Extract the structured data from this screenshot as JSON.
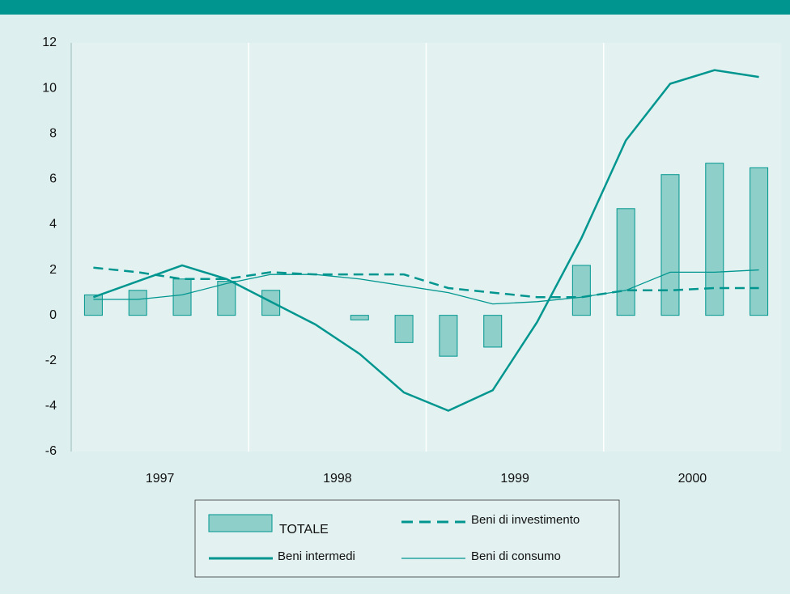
{
  "chart_data": {
    "type": "bar_line",
    "categories": [
      null,
      null,
      null,
      null,
      null,
      null,
      null,
      null,
      null,
      null,
      null,
      null,
      null,
      null,
      null,
      null
    ],
    "x_groups": [
      "1997",
      "1998",
      "1999",
      "2000"
    ],
    "ylim": [
      -6,
      12
    ],
    "yticks": [
      -6,
      -4,
      -2,
      0,
      2,
      4,
      6,
      8,
      10,
      12
    ],
    "bars": {
      "name": "TOTALE",
      "color": "#8ecfc9",
      "values": [
        0.9,
        1.1,
        1.6,
        1.5,
        1.1,
        null,
        -0.2,
        -1.2,
        -1.8,
        -1.4,
        null,
        2.2,
        4.7,
        6.2,
        6.7,
        6.5
      ]
    },
    "series": [
      {
        "name": "Beni di investimento",
        "color": "#00968f",
        "style": "dashed",
        "values": [
          2.1,
          1.9,
          1.6,
          1.6,
          1.9,
          1.8,
          1.8,
          1.8,
          1.2,
          1.0,
          0.8,
          0.8,
          1.1,
          1.1,
          1.2,
          1.2
        ]
      },
      {
        "name": "Beni intermedi",
        "color": "#00968f",
        "style": "thick",
        "values": [
          0.8,
          1.5,
          2.2,
          1.6,
          0.6,
          -0.4,
          -1.7,
          -3.4,
          -4.2,
          -3.3,
          -0.3,
          3.4,
          7.7,
          10.2,
          10.8,
          10.5
        ]
      },
      {
        "name": "Beni di consumo",
        "color": "#00968f",
        "style": "thin",
        "values": [
          0.7,
          0.7,
          0.9,
          1.4,
          1.8,
          1.8,
          1.6,
          1.3,
          1.0,
          0.5,
          0.6,
          0.8,
          1.1,
          1.9,
          1.9,
          2.0
        ]
      }
    ]
  }
}
